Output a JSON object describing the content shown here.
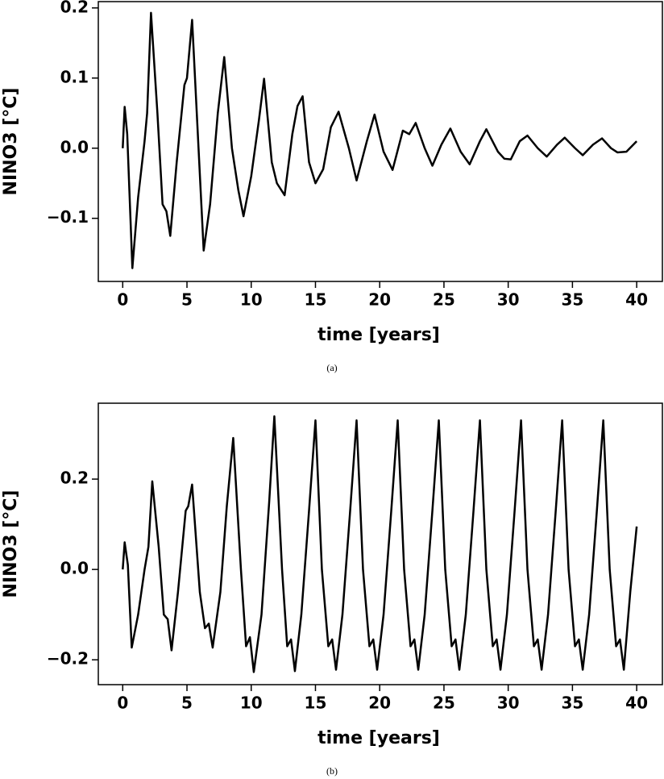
{
  "chart_data": [
    {
      "type": "line",
      "caption": "(a)",
      "xlabel": "time [years]",
      "ylabel": "NINO3 [°C]",
      "xlim": [
        -1.9,
        42
      ],
      "ylim": [
        -0.19,
        0.209
      ],
      "xticks": [
        0,
        5,
        10,
        15,
        20,
        25,
        30,
        35,
        40
      ],
      "yticks": [
        {
          "value": -0.1,
          "label": "−0.1"
        },
        {
          "value": 0,
          "label": "0.0"
        },
        0.1,
        0.2
      ],
      "series": [
        {
          "color": "#000000",
          "x": [
            0,
            0.15,
            0.35,
            0.75,
            1.2,
            1.7,
            1.9,
            2.2,
            2.7,
            3.1,
            3.4,
            3.7,
            4.2,
            4.8,
            5.0,
            5.4,
            5.9,
            6.3,
            6.8,
            7.4,
            7.9,
            8.5,
            9.0,
            9.4,
            10.0,
            10.6,
            11.0,
            11.6,
            12.0,
            12.6,
            13.2,
            13.6,
            14.0,
            14.5,
            15.0,
            15.6,
            16.2,
            16.8,
            17.6,
            18.2,
            19.0,
            19.6,
            20.3,
            21.0,
            21.8,
            22.3,
            22.8,
            23.5,
            24.1,
            24.8,
            25.5,
            26.3,
            27.0,
            27.8,
            28.3,
            29.2,
            29.7,
            30.2,
            30.9,
            31.5,
            32.3,
            33.0,
            33.8,
            34.4,
            35.2,
            35.8,
            36.6,
            37.3,
            38.0,
            38.5,
            39.2,
            40.0
          ],
          "values": [
            0,
            0.059,
            0.02,
            -0.171,
            -0.07,
            0.01,
            0.05,
            0.193,
            0.05,
            -0.08,
            -0.09,
            -0.125,
            -0.02,
            0.09,
            0.1,
            0.183,
            0.0,
            -0.146,
            -0.08,
            0.05,
            0.13,
            0.0,
            -0.06,
            -0.097,
            -0.04,
            0.04,
            0.099,
            -0.02,
            -0.05,
            -0.067,
            0.02,
            0.06,
            0.074,
            -0.02,
            -0.05,
            -0.03,
            0.03,
            0.052,
            0.0,
            -0.046,
            0.01,
            0.048,
            -0.005,
            -0.031,
            0.025,
            0.02,
            0.036,
            0.0,
            -0.025,
            0.005,
            0.028,
            -0.005,
            -0.023,
            0.01,
            0.027,
            -0.005,
            -0.015,
            -0.016,
            0.01,
            0.018,
            0.0,
            -0.012,
            0.005,
            0.015,
            0.0,
            -0.01,
            0.005,
            0.014,
            0.0,
            -0.006,
            -0.005,
            0.01
          ]
        }
      ]
    },
    {
      "type": "line",
      "caption": "(b)",
      "xlabel": "time [years]",
      "ylabel": "NINO3 [°C]",
      "xlim": [
        -1.9,
        42
      ],
      "ylim": [
        -0.255,
        0.368
      ],
      "xticks": [
        0,
        5,
        10,
        15,
        20,
        25,
        30,
        35,
        40
      ],
      "yticks": [
        {
          "value": -0.2,
          "label": "−0.2"
        },
        {
          "value": 0,
          "label": "0.0"
        },
        0.2
      ],
      "series": [
        {
          "color": "#000000",
          "x": [
            0,
            0.15,
            0.4,
            0.7,
            1.2,
            1.7,
            2.0,
            2.3,
            2.8,
            3.2,
            3.5,
            3.8,
            4.3,
            4.9,
            5.1,
            5.4,
            6.0,
            6.4,
            6.7,
            7.0,
            7.6,
            8.1,
            8.6,
            9.2,
            9.6,
            9.9,
            10.2,
            10.8,
            11.4,
            11.8,
            12.4,
            12.8,
            13.1,
            13.4,
            13.9,
            14.5,
            15.0,
            15.5,
            16.0,
            16.3,
            16.6,
            17.1,
            17.7,
            18.2,
            18.7,
            19.2,
            19.5,
            19.8,
            20.3,
            20.9,
            21.4,
            21.9,
            22.4,
            22.7,
            23.0,
            23.5,
            24.1,
            24.6,
            25.1,
            25.6,
            25.9,
            26.2,
            26.7,
            27.3,
            27.8,
            28.3,
            28.8,
            29.1,
            29.4,
            29.9,
            30.5,
            31.0,
            31.5,
            32.0,
            32.3,
            32.6,
            33.1,
            33.7,
            34.2,
            34.7,
            35.2,
            35.5,
            35.8,
            36.3,
            36.9,
            37.4,
            37.9,
            38.4,
            38.7,
            39.0,
            39.5,
            40.0
          ],
          "values": [
            0,
            0.06,
            0.01,
            -0.173,
            -0.1,
            0.0,
            0.05,
            0.195,
            0.05,
            -0.1,
            -0.11,
            -0.179,
            -0.05,
            0.13,
            0.14,
            0.188,
            -0.05,
            -0.13,
            -0.12,
            -0.173,
            -0.05,
            0.14,
            0.291,
            0.0,
            -0.17,
            -0.15,
            -0.227,
            -0.1,
            0.15,
            0.339,
            0.0,
            -0.17,
            -0.155,
            -0.225,
            -0.1,
            0.13,
            0.33,
            0.0,
            -0.17,
            -0.155,
            -0.222,
            -0.1,
            0.13,
            0.33,
            0.0,
            -0.17,
            -0.155,
            -0.222,
            -0.1,
            0.13,
            0.33,
            0.0,
            -0.17,
            -0.155,
            -0.222,
            -0.1,
            0.13,
            0.33,
            0.0,
            -0.17,
            -0.155,
            -0.222,
            -0.1,
            0.13,
            0.33,
            0.0,
            -0.17,
            -0.155,
            -0.222,
            -0.1,
            0.13,
            0.33,
            0.0,
            -0.17,
            -0.155,
            -0.222,
            -0.1,
            0.13,
            0.33,
            0.0,
            -0.17,
            -0.155,
            -0.222,
            -0.1,
            0.13,
            0.33,
            0.0,
            -0.17,
            -0.155,
            -0.222,
            -0.05,
            0.095
          ]
        }
      ]
    }
  ]
}
